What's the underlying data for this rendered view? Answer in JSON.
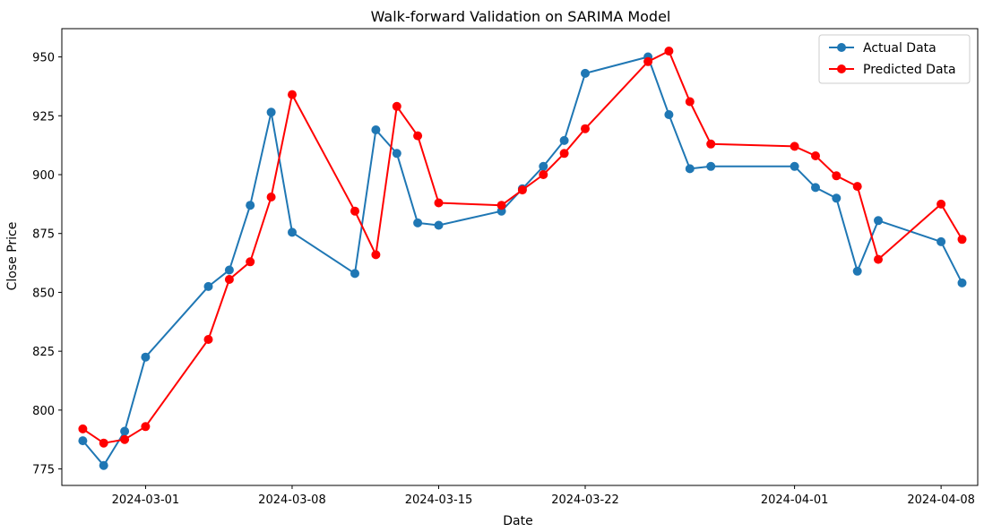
{
  "chart_data": {
    "type": "line",
    "title": "Walk-forward Validation on SARIMA Model",
    "xlabel": "Date",
    "ylabel": "Close Price",
    "ylim": [
      768,
      962
    ],
    "xlim": [
      "2024-02-26T00:00",
      "2024-04-09T18:00"
    ],
    "x_ticks": [
      "2024-03-01",
      "2024-03-08",
      "2024-03-15",
      "2024-03-22",
      "2024-04-01",
      "2024-04-08"
    ],
    "y_ticks": [
      775,
      800,
      825,
      850,
      875,
      900,
      925,
      950
    ],
    "grid": false,
    "legend_position": "top-right",
    "x": [
      "2024-02-27",
      "2024-02-28",
      "2024-02-29",
      "2024-03-01",
      "2024-03-04",
      "2024-03-05",
      "2024-03-06",
      "2024-03-07",
      "2024-03-08",
      "2024-03-11",
      "2024-03-12",
      "2024-03-13",
      "2024-03-14",
      "2024-03-15",
      "2024-03-18",
      "2024-03-19",
      "2024-03-20",
      "2024-03-21",
      "2024-03-22",
      "2024-03-25",
      "2024-03-26",
      "2024-03-27",
      "2024-03-28",
      "2024-04-01",
      "2024-04-02",
      "2024-04-03",
      "2024-04-04",
      "2024-04-05",
      "2024-04-08",
      "2024-04-09"
    ],
    "series": [
      {
        "name": "Actual Data",
        "color": "#1f77b4",
        "values": [
          787,
          776.5,
          791,
          822.5,
          852.5,
          859.5,
          887,
          926.5,
          875.5,
          858,
          919,
          909,
          879.5,
          878.5,
          884.5,
          894,
          903.5,
          914.5,
          943,
          950,
          925.5,
          902.5,
          903.5,
          903.5,
          894.5,
          890,
          859,
          880.5,
          871.5,
          854
        ]
      },
      {
        "name": "Predicted Data",
        "color": "#ff0000",
        "values": [
          792,
          786,
          787.5,
          793,
          830,
          855.5,
          863,
          890.5,
          934,
          884.5,
          866,
          929,
          916.5,
          888,
          887,
          893.5,
          900,
          909,
          919.5,
          948,
          952.5,
          931,
          913,
          912,
          908,
          899.5,
          895,
          864,
          887.5,
          872.5
        ]
      }
    ]
  }
}
